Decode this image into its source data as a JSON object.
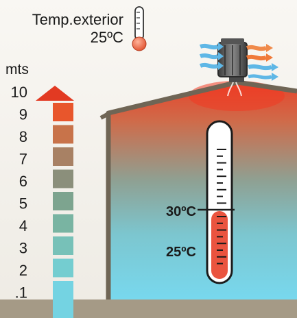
{
  "exterior": {
    "label": "Temp.exterior",
    "temperature": "25ºC"
  },
  "height_scale": {
    "unit": "mts",
    "labels": [
      "10",
      "9",
      "8",
      "7",
      "6",
      "5",
      "4",
      "3",
      "2",
      ".1"
    ],
    "colors": [
      "#e8562c",
      "#c8734a",
      "#a88164",
      "#8b8f7b",
      "#7da48f",
      "#79b4a2",
      "#77c1b8",
      "#74cdd0",
      "#74d3e2"
    ]
  },
  "interior_thermometer": {
    "marks": [
      "30ºC",
      "25ºC"
    ],
    "current_reading": "25ºC"
  },
  "colors": {
    "hot": "#e8412a",
    "cool": "#78d5ea",
    "ground": "#a59a86",
    "roof": "#7b6f5e"
  }
}
